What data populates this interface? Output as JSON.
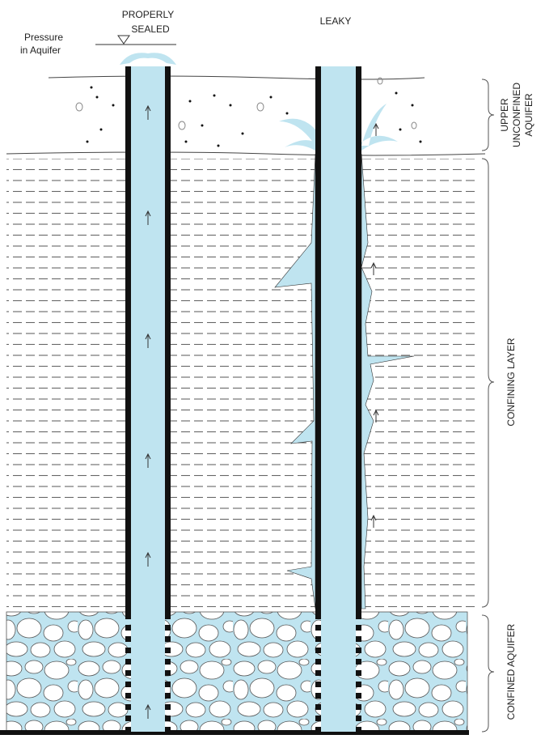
{
  "labels": {
    "pressure": [
      "Pressure",
      "in Aquifer"
    ],
    "properly_sealed": [
      "PROPERLY",
      "SEALED"
    ],
    "leaky": "LEAKY",
    "upper_aquifer": [
      "UPPER",
      "UNCONFINED",
      "AQUIFER"
    ],
    "confining_layer": "CONFINING LAYER",
    "confined_aquifer": "CONFINED AQUIFER"
  }
}
